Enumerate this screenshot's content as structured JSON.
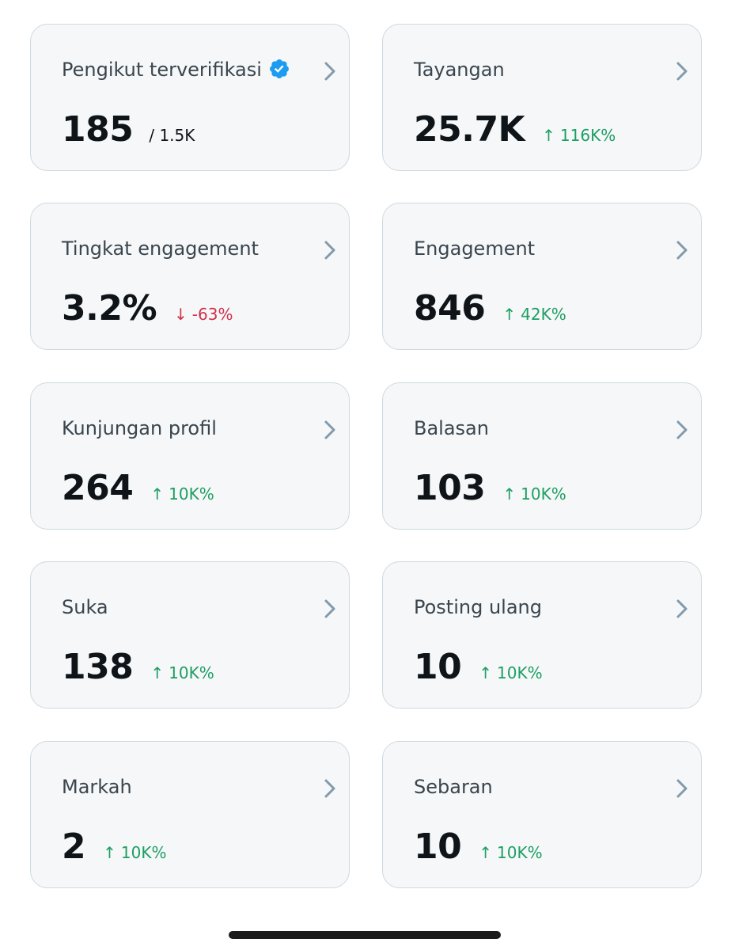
{
  "colors": {
    "card_background": "#f5f7f8",
    "card_border": "#cfd9de",
    "positive": "#1e9e63",
    "negative": "#d0324a",
    "verified_badge": "#1d9bf0",
    "chevron": "#829aab"
  },
  "icons": {
    "chevron": "chevron-right-icon",
    "verified": "verified-badge-icon",
    "up": "arrow-up-icon",
    "down": "arrow-down-icon"
  },
  "cards": [
    {
      "title": "Pengikut terverifikasi",
      "value": "185",
      "sub": "/ 1.5K",
      "verified": true
    },
    {
      "title": "Tayangan",
      "value": "25.7K",
      "change": "116K%",
      "direction": "up",
      "arrow": "↑"
    },
    {
      "title": "Tingkat engagement",
      "value": "3.2%",
      "change": "-63%",
      "direction": "down",
      "arrow": "↓"
    },
    {
      "title": "Engagement",
      "value": "846",
      "change": "42K%",
      "direction": "up",
      "arrow": "↑"
    },
    {
      "title": "Kunjungan profil",
      "value": "264",
      "change": "10K%",
      "direction": "up",
      "arrow": "↑"
    },
    {
      "title": "Balasan",
      "value": "103",
      "change": "10K%",
      "direction": "up",
      "arrow": "↑"
    },
    {
      "title": "Suka",
      "value": "138",
      "change": "10K%",
      "direction": "up",
      "arrow": "↑"
    },
    {
      "title": "Posting ulang",
      "value": "10",
      "change": "10K%",
      "direction": "up",
      "arrow": "↑"
    },
    {
      "title": "Markah",
      "value": "2",
      "change": "10K%",
      "direction": "up",
      "arrow": "↑"
    },
    {
      "title": "Sebaran",
      "value": "10",
      "change": "10K%",
      "direction": "up",
      "arrow": "↑"
    }
  ]
}
